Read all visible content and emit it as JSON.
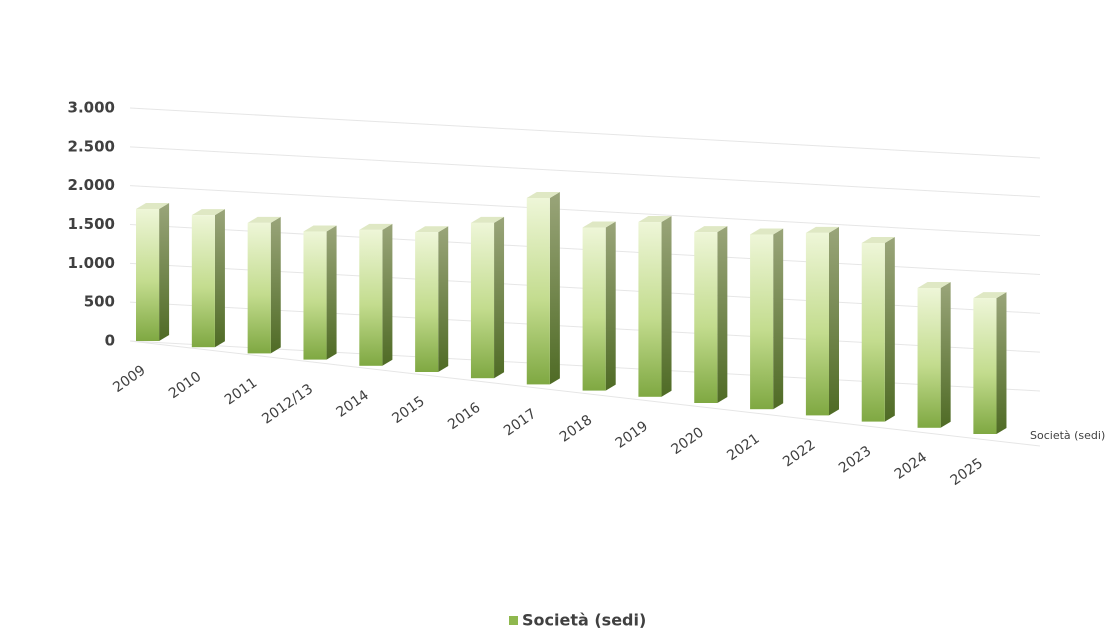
{
  "chart_data": {
    "type": "bar3d",
    "categories": [
      "2009",
      "2010",
      "2011",
      "2012/13",
      "2014",
      "2015",
      "2016",
      "2017",
      "2018",
      "2019",
      "2020",
      "2021",
      "2022",
      "2023",
      "2024",
      "2025"
    ],
    "series": [
      {
        "name": "Società (sedi)",
        "color": "#8fb84e",
        "values": [
          1700,
          1700,
          1680,
          1650,
          1750,
          1800,
          2000,
          2400,
          2100,
          2250,
          2200,
          2250,
          2350,
          2300,
          1800,
          1750
        ]
      }
    ],
    "ylim": [
      0,
      3000
    ],
    "yticks": [
      0,
      500,
      {
        "value": 1000,
        "label": "1.000"
      },
      {
        "value": 1500,
        "label": "1.500"
      },
      {
        "value": 2000,
        "label": "2.000"
      },
      {
        "value": 2500,
        "label": "2.500"
      },
      {
        "value": 3000,
        "label": "3.000"
      }
    ],
    "grid": true,
    "legend": "bottom"
  }
}
